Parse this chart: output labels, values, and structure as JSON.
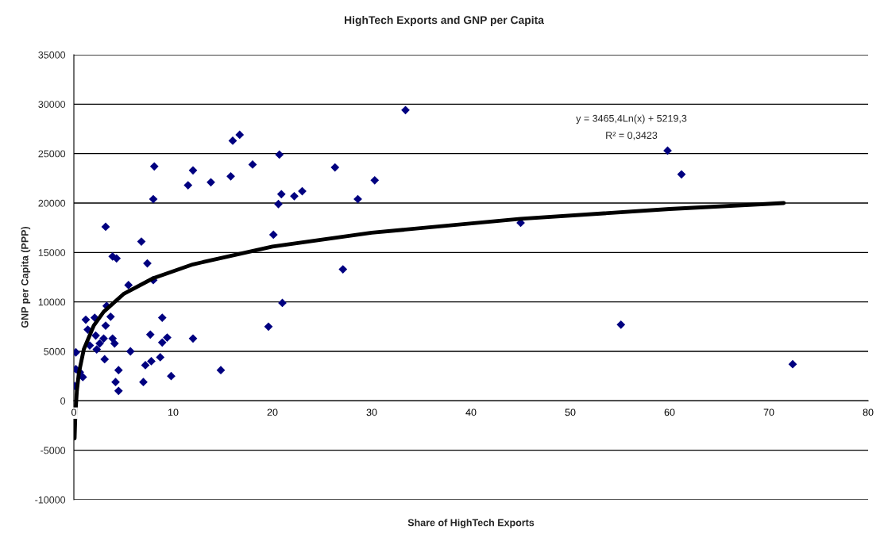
{
  "chart_data": {
    "type": "scatter",
    "title": "HighTech Exports and GNP per Capita",
    "xlabel": "Share of HighTech Exports",
    "ylabel": "GNP per Capita (PPP)",
    "series": [
      {
        "color": "#000080",
        "marker": "diamond",
        "x": [
          0.1,
          0.2,
          0.2,
          0.6,
          0.9,
          1.2,
          1.4,
          1.6,
          2.1,
          2.2,
          2.3,
          2.6,
          3.0,
          3.1,
          3.2,
          3.2,
          3.3,
          3.7,
          3.9,
          3.9,
          4.1,
          4.2,
          4.3,
          4.5,
          4.5,
          5.5,
          5.7,
          6.8,
          7.0,
          7.2,
          7.4,
          7.7,
          7.8,
          8.0,
          8.0,
          8.1,
          8.7,
          8.9,
          8.9,
          9.4,
          9.8,
          11.5,
          12.0,
          12.0,
          13.8,
          14.8,
          15.8,
          16.0,
          16.7,
          18.0,
          19.6,
          20.1,
          20.6,
          20.7,
          20.9,
          21.0,
          22.2,
          23.0,
          26.3,
          27.1,
          28.6,
          30.3,
          33.4,
          45.0,
          55.1,
          59.8,
          61.2,
          72.4
        ],
        "values": [
          1500,
          3200,
          4900,
          2900,
          2400,
          8200,
          7200,
          5600,
          8400,
          6600,
          5200,
          5800,
          6300,
          4200,
          7600,
          17600,
          9600,
          8500,
          6300,
          14600,
          5800,
          1900,
          14400,
          3100,
          1000,
          11700,
          5000,
          16100,
          1900,
          3600,
          13900,
          6700,
          4000,
          12200,
          20400,
          23700,
          4400,
          8400,
          5900,
          6400,
          2500,
          21800,
          6300,
          23300,
          22100,
          3100,
          22700,
          26300,
          26900,
          23900,
          7500,
          16800,
          19900,
          24900,
          20900,
          9900,
          20700,
          21200,
          23600,
          13300,
          20400,
          22300,
          29400,
          18000,
          7700,
          25300,
          22900,
          3700
        ]
      },
      {
        "type": "line",
        "color": "#000000",
        "marker": "none",
        "line_style": "solid",
        "x": [
          0.075,
          0.15,
          0.3,
          0.5,
          1,
          2,
          3,
          5,
          8,
          12,
          20,
          30,
          45,
          60,
          71.5
        ],
        "values": [
          -3800,
          -1400,
          1000,
          2800,
          5200,
          7600,
          9000,
          10800,
          12400,
          13800,
          15600,
          17000,
          18400,
          19400,
          20000
        ]
      }
    ],
    "annotations": [
      "y = 3465,4Ln(x) + 5219,3",
      "R² = 0,3423"
    ],
    "xlim": [
      0,
      80
    ],
    "xticks": [
      0,
      10,
      20,
      30,
      40,
      50,
      60,
      70,
      80
    ],
    "ylim": [
      -10000,
      35000
    ],
    "yticks": [
      -10000,
      -5000,
      0,
      5000,
      10000,
      15000,
      20000,
      25000,
      30000,
      35000
    ],
    "grid": "y",
    "legend": false
  }
}
